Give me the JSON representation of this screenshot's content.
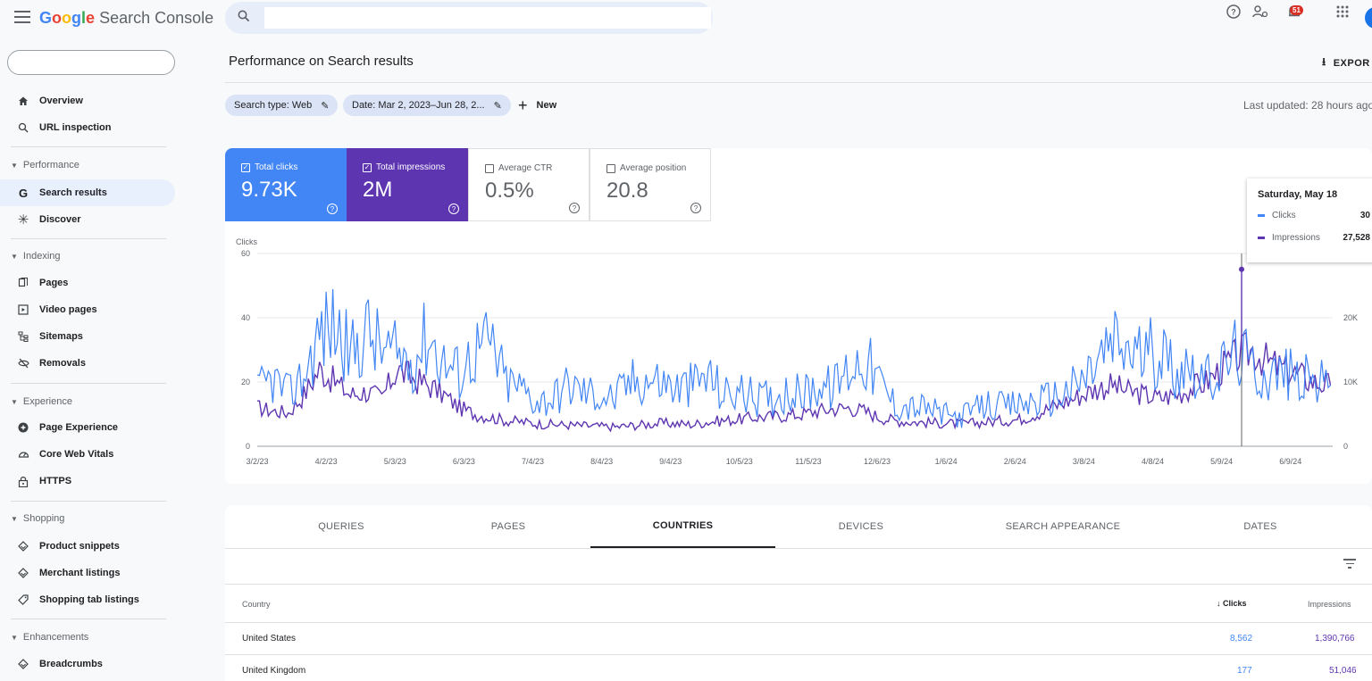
{
  "app": {
    "brand_google": "Google",
    "brand_product": "Search Console",
    "search_placeholder": "",
    "notification_count": "51"
  },
  "sidebar": {
    "property_value": "",
    "items": [
      {
        "label": "Overview",
        "icon": "home-icon"
      },
      {
        "label": "URL inspection",
        "icon": "search-icon"
      },
      {
        "section": "Performance"
      },
      {
        "label": "Search results",
        "icon": "google-g-icon",
        "active": true
      },
      {
        "label": "Discover",
        "icon": "asterisk-icon"
      },
      {
        "section": "Indexing"
      },
      {
        "label": "Pages",
        "icon": "pages-icon"
      },
      {
        "label": "Video pages",
        "icon": "video-pages-icon"
      },
      {
        "label": "Sitemaps",
        "icon": "sitemap-icon"
      },
      {
        "label": "Removals",
        "icon": "removals-icon"
      },
      {
        "section": "Experience"
      },
      {
        "label": "Page Experience",
        "icon": "page-experience-icon"
      },
      {
        "label": "Core Web Vitals",
        "icon": "gauge-icon"
      },
      {
        "label": "HTTPS",
        "icon": "lock-icon"
      },
      {
        "section": "Shopping"
      },
      {
        "label": "Product snippets",
        "icon": "diamond-icon"
      },
      {
        "label": "Merchant listings",
        "icon": "diamond-icon"
      },
      {
        "label": "Shopping tab listings",
        "icon": "tag-icon"
      },
      {
        "section": "Enhancements"
      },
      {
        "label": "Breadcrumbs",
        "icon": "diamond-icon"
      }
    ]
  },
  "header": {
    "title": "Performance on Search results",
    "export_label": "EXPOR",
    "chip_search_type": "Search type: Web",
    "chip_date": "Date: Mar 2, 2023–Jun 28, 2...",
    "new_label": "New",
    "last_updated": "Last updated: 28 hours ago"
  },
  "metrics": {
    "clicks": {
      "label": "Total clicks",
      "value": "9.73K",
      "checked": true
    },
    "impressions": {
      "label": "Total impressions",
      "value": "2M",
      "checked": true
    },
    "ctr": {
      "label": "Average CTR",
      "value": "0.5%",
      "checked": false
    },
    "position": {
      "label": "Average position",
      "value": "20.8",
      "checked": false
    }
  },
  "tooltip": {
    "date": "Saturday, May 18",
    "clicks_label": "Clicks",
    "clicks_value": "30",
    "impressions_label": "Impressions",
    "impressions_value": "27,528"
  },
  "colors": {
    "clicks": "#4285f4",
    "impressions": "#5e35b1",
    "active_nav": "#e8f0fe"
  },
  "chart_data": {
    "type": "line",
    "title": "",
    "ylabel": "Clicks",
    "ylim": [
      0,
      60
    ],
    "yticks": [
      0,
      20,
      40,
      60
    ],
    "y2lim": [
      0,
      30000
    ],
    "y2ticks": [
      "0",
      "10K",
      "20K"
    ],
    "x_tick_labels": [
      "3/2/23",
      "4/2/23",
      "5/3/23",
      "6/3/23",
      "7/4/23",
      "8/4/23",
      "9/4/23",
      "10/5/23",
      "11/5/23",
      "12/6/23",
      "1/6/24",
      "2/6/24",
      "3/8/24",
      "4/8/24",
      "5/9/24",
      "6/9/24"
    ],
    "x_start": "2023-03-02",
    "x_end": "2024-06-28",
    "weekly_x": [
      "3/2/23",
      "3/9/23",
      "3/16/23",
      "3/23/23",
      "3/30/23",
      "4/6/23",
      "4/13/23",
      "4/20/23",
      "4/27/23",
      "5/4/23",
      "5/11/23",
      "5/18/23",
      "5/25/23",
      "6/1/23",
      "6/8/23",
      "6/15/23",
      "6/22/23",
      "6/29/23",
      "7/6/23",
      "7/13/23",
      "7/20/23",
      "7/27/23",
      "8/3/23",
      "8/10/23",
      "8/17/23",
      "8/24/23",
      "8/31/23",
      "9/7/23",
      "9/14/23",
      "9/21/23",
      "9/28/23",
      "10/5/23",
      "10/12/23",
      "10/19/23",
      "10/26/23",
      "11/2/23",
      "11/9/23",
      "11/16/23",
      "11/23/23",
      "11/30/23",
      "12/7/23",
      "12/14/23",
      "12/21/23",
      "12/28/23",
      "1/4/24",
      "1/11/24",
      "1/18/24",
      "1/25/24",
      "2/1/24",
      "2/8/24",
      "2/15/24",
      "2/22/24",
      "2/29/24",
      "3/7/24",
      "3/14/24",
      "3/21/24",
      "3/28/24",
      "4/4/24",
      "4/11/24",
      "4/18/24",
      "4/25/24",
      "5/2/24",
      "5/9/24",
      "5/16/24",
      "5/23/24",
      "5/30/24",
      "6/6/24",
      "6/13/24",
      "6/20/24",
      "6/27/24"
    ],
    "series": [
      {
        "name": "Clicks",
        "axis": "left",
        "values": [
          17,
          21,
          16,
          22,
          35,
          38,
          28,
          36,
          30,
          28,
          27,
          35,
          26,
          23,
          30,
          32,
          20,
          18,
          14,
          15,
          19,
          17,
          16,
          15,
          20,
          21,
          20,
          18,
          19,
          22,
          16,
          17,
          15,
          15,
          17,
          16,
          19,
          18,
          24,
          28,
          20,
          13,
          12,
          12,
          10,
          9,
          11,
          13,
          12,
          13,
          14,
          15,
          17,
          20,
          26,
          32,
          30,
          28,
          30,
          24,
          26,
          20,
          24,
          30,
          24,
          22,
          23,
          21,
          20,
          19
        ]
      },
      {
        "name": "Impressions",
        "axis": "right",
        "values": [
          6000,
          5500,
          5200,
          8000,
          12000,
          10000,
          8000,
          8500,
          7500,
          12000,
          10500,
          9500,
          8000,
          6000,
          5000,
          4500,
          4000,
          3800,
          3500,
          3400,
          3300,
          3200,
          3100,
          3000,
          3200,
          3400,
          3600,
          3500,
          3400,
          3800,
          4000,
          4200,
          4500,
          4600,
          4800,
          5000,
          5500,
          5800,
          6000,
          5500,
          4500,
          4000,
          3800,
          3700,
          3600,
          3500,
          3600,
          3800,
          4000,
          4200,
          5000,
          6000,
          7000,
          8000,
          9000,
          9500,
          8500,
          8000,
          7500,
          8000,
          9000,
          10000,
          12000,
          14000,
          15000,
          13000,
          12000,
          11000,
          10000,
          9500
        ]
      }
    ],
    "tooltip_date": "5/18/24",
    "legend": "none"
  },
  "table": {
    "tabs": [
      "QUERIES",
      "PAGES",
      "COUNTRIES",
      "DEVICES",
      "SEARCH APPEARANCE",
      "DATES"
    ],
    "active_tab": "COUNTRIES",
    "columns": {
      "country": "Country",
      "clicks": "Clicks",
      "impressions": "Impressions"
    },
    "sort_indicator": "↓",
    "rows": [
      {
        "country": "United States",
        "clicks": "8,562",
        "impressions": "1,390,766"
      },
      {
        "country": "United Kingdom",
        "clicks": "177",
        "impressions": "51,046"
      }
    ]
  }
}
